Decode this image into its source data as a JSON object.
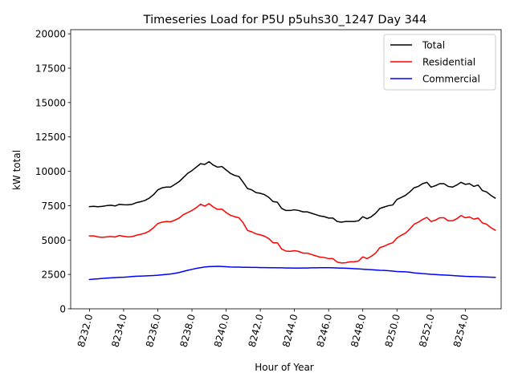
{
  "chart_data": {
    "type": "line",
    "title": "Timeseries Load for P5U p5uhs30_1247  Day 344",
    "xlabel": "Hour of Year",
    "ylabel": "kW total",
    "xlim": [
      8230.9,
      8256.1
    ],
    "ylim": [
      0,
      20300
    ],
    "xticks": [
      8232,
      8234,
      8236,
      8238,
      8240,
      8242,
      8244,
      8246,
      8248,
      8250,
      8252,
      8254
    ],
    "xtick_labels": [
      "8232.0",
      "8234.0",
      "8236.0",
      "8238.0",
      "8240.0",
      "8242.0",
      "8244.0",
      "8246.0",
      "8248.0",
      "8250.0",
      "8252.0",
      "8254.0"
    ],
    "yticks": [
      0,
      2500,
      5000,
      7500,
      10000,
      12500,
      15000,
      17500,
      20000
    ],
    "ytick_labels": [
      "0",
      "2500",
      "5000",
      "7500",
      "10000",
      "12500",
      "15000",
      "17500",
      "20000"
    ],
    "grid": false,
    "legend_position": "top-right",
    "x": [
      8232.0,
      8232.25,
      8232.5,
      8232.75,
      8233.0,
      8233.25,
      8233.5,
      8233.75,
      8234.0,
      8234.25,
      8234.5,
      8234.75,
      8235.0,
      8235.25,
      8235.5,
      8235.75,
      8236.0,
      8236.25,
      8236.5,
      8236.75,
      8237.0,
      8237.25,
      8237.5,
      8237.75,
      8238.0,
      8238.25,
      8238.5,
      8238.75,
      8239.0,
      8239.25,
      8239.5,
      8239.75,
      8240.0,
      8240.25,
      8240.5,
      8240.75,
      8241.0,
      8241.25,
      8241.5,
      8241.75,
      8242.0,
      8242.25,
      8242.5,
      8242.75,
      8243.0,
      8243.25,
      8243.5,
      8243.75,
      8244.0,
      8244.25,
      8244.5,
      8244.75,
      8245.0,
      8245.25,
      8245.5,
      8245.75,
      8246.0,
      8246.25,
      8246.5,
      8246.75,
      8247.0,
      8247.25,
      8247.5,
      8247.75,
      8248.0,
      8248.25,
      8248.5,
      8248.75,
      8249.0,
      8249.25,
      8249.5,
      8249.75,
      8250.0,
      8250.25,
      8250.5,
      8250.75,
      8251.0,
      8251.25,
      8251.5,
      8251.75,
      8252.0,
      8252.25,
      8252.5,
      8252.75,
      8253.0,
      8253.25,
      8253.5,
      8253.75,
      8254.0,
      8254.25,
      8254.5,
      8254.75,
      8255.0,
      8255.25,
      8255.5,
      8255.75
    ],
    "series": [
      {
        "name": "Total",
        "color": "#000000",
        "values": [
          7430,
          7450,
          7420,
          7450,
          7500,
          7530,
          7480,
          7600,
          7570,
          7560,
          7600,
          7720,
          7790,
          7880,
          8050,
          8300,
          8650,
          8800,
          8850,
          8850,
          9050,
          9250,
          9550,
          9850,
          10050,
          10300,
          10550,
          10500,
          10700,
          10450,
          10300,
          10350,
          10100,
          9850,
          9700,
          9620,
          9200,
          8750,
          8650,
          8450,
          8400,
          8300,
          8100,
          7800,
          7750,
          7300,
          7150,
          7150,
          7200,
          7150,
          7050,
          7050,
          6950,
          6850,
          6750,
          6700,
          6600,
          6600,
          6350,
          6300,
          6350,
          6350,
          6350,
          6400,
          6700,
          6550,
          6700,
          6950,
          7300,
          7400,
          7500,
          7550,
          7950,
          8100,
          8250,
          8500,
          8800,
          8900,
          9100,
          9200,
          8850,
          8950,
          9100,
          9100,
          8900,
          8850,
          9000,
          9200,
          9050,
          9100,
          8900,
          9000,
          8600,
          8500,
          8250,
          8050
        ]
      },
      {
        "name": "Residential",
        "color": "#ff0000",
        "values": [
          5300,
          5300,
          5230,
          5200,
          5230,
          5260,
          5220,
          5330,
          5270,
          5230,
          5250,
          5350,
          5420,
          5500,
          5650,
          5900,
          6200,
          6300,
          6350,
          6330,
          6450,
          6600,
          6850,
          7000,
          7150,
          7350,
          7600,
          7470,
          7650,
          7400,
          7230,
          7250,
          7000,
          6800,
          6700,
          6620,
          6250,
          5700,
          5600,
          5450,
          5380,
          5280,
          5100,
          4800,
          4800,
          4350,
          4200,
          4180,
          4230,
          4170,
          4050,
          4050,
          3950,
          3850,
          3760,
          3730,
          3650,
          3650,
          3400,
          3330,
          3350,
          3420,
          3420,
          3470,
          3780,
          3650,
          3820,
          4050,
          4450,
          4550,
          4700,
          4800,
          5150,
          5350,
          5500,
          5800,
          6150,
          6300,
          6500,
          6650,
          6350,
          6450,
          6620,
          6620,
          6400,
          6400,
          6550,
          6780,
          6620,
          6680,
          6520,
          6600,
          6250,
          6150,
          5900,
          5720
        ]
      },
      {
        "name": "Commercial",
        "color": "#0000ff",
        "values": [
          2130,
          2160,
          2180,
          2210,
          2230,
          2250,
          2270,
          2290,
          2300,
          2320,
          2350,
          2370,
          2380,
          2390,
          2410,
          2420,
          2440,
          2470,
          2500,
          2530,
          2580,
          2640,
          2720,
          2800,
          2870,
          2940,
          2990,
          3040,
          3070,
          3080,
          3090,
          3080,
          3060,
          3040,
          3030,
          3030,
          3020,
          3020,
          3010,
          3010,
          3000,
          3000,
          2990,
          2990,
          2980,
          2980,
          2970,
          2970,
          2960,
          2960,
          2970,
          2970,
          2980,
          2980,
          2990,
          2990,
          2990,
          2980,
          2970,
          2960,
          2950,
          2940,
          2920,
          2900,
          2880,
          2860,
          2840,
          2820,
          2800,
          2790,
          2770,
          2740,
          2710,
          2700,
          2690,
          2660,
          2610,
          2590,
          2560,
          2540,
          2510,
          2490,
          2470,
          2460,
          2440,
          2420,
          2400,
          2380,
          2360,
          2350,
          2340,
          2330,
          2320,
          2310,
          2300,
          2290
        ]
      }
    ]
  }
}
